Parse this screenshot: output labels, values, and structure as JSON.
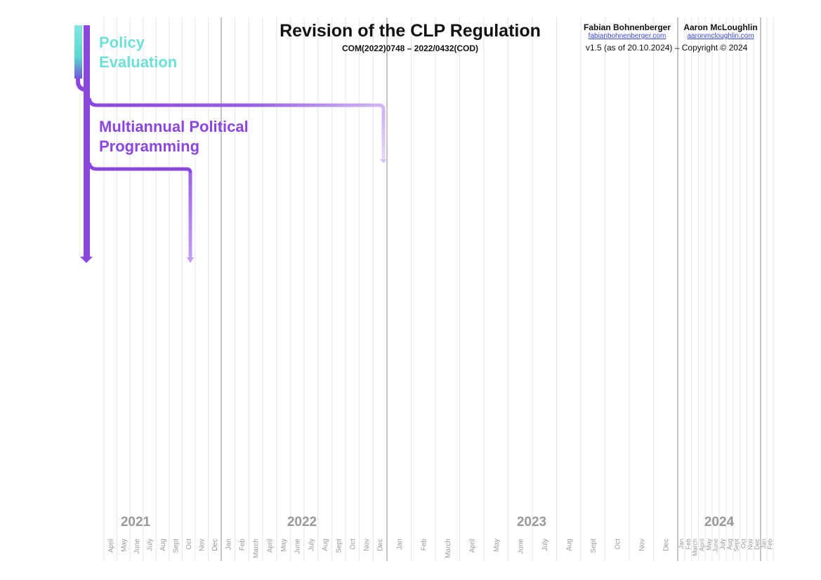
{
  "header": {
    "title": "Revision of the CLP Regulation",
    "subtitle": "COM(2022)0748 – 2022/0432(COD)",
    "author1_name": "Fabian Bohnenberger",
    "author1_link": "fabianbohnenberger.com",
    "author2_name": "Aaron McLoughlin",
    "author2_link": "aaronmcloughlin.com",
    "version": "v1.5 (as of 20.10.2024) – Copyright © 2024"
  },
  "phases": {
    "policy_evaluation": "Policy Evaluation",
    "multiannual_programming": "Multiannual Political Programming"
  },
  "colors": {
    "teal": "#6ee0d8",
    "purple": "#8b46e0",
    "purple_light": "#c7a5ef",
    "gridline": "#e6e6e6",
    "year_divider": "#888888"
  },
  "years": [
    "2021",
    "2022",
    "2023",
    "2024"
  ],
  "months": {
    "2021": [
      "April",
      "May",
      "June",
      "July",
      "Aug",
      "Sept",
      "Oct",
      "Nov",
      "Dec"
    ],
    "2022": [
      "Jan",
      "Feb",
      "March",
      "April",
      "May",
      "June",
      "July",
      "Aug",
      "Sept",
      "Oct",
      "Nov",
      "Dec"
    ],
    "2023": [
      "Jan",
      "Feb",
      "March",
      "April",
      "May",
      "June",
      "July",
      "Aug",
      "Sept",
      "Oct",
      "Nov",
      "Dec"
    ],
    "2024": [
      "Jan",
      "Feb",
      "March",
      "April",
      "May",
      "June",
      "July",
      "Aug",
      "Sept",
      "Oct",
      "Nov",
      "Dec"
    ],
    "2025": [
      "Jan",
      "Feb"
    ]
  }
}
